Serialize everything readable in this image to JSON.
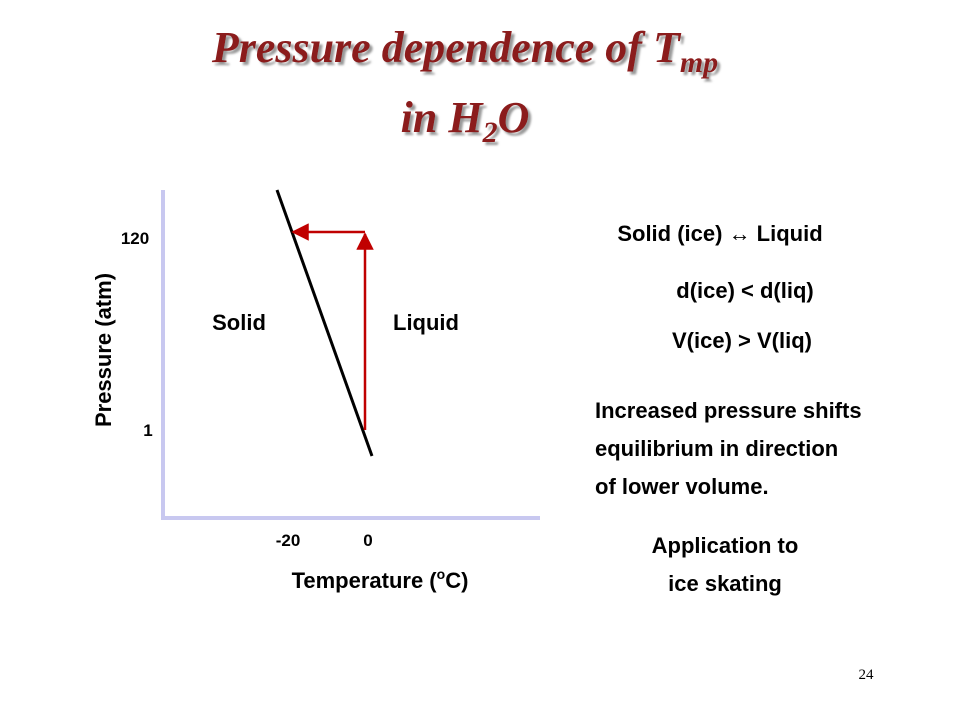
{
  "title": {
    "line1": "Pressure dependence of T",
    "line1_sub": "mp",
    "line2": "in H",
    "line2_sub": "2",
    "line2_end": "O"
  },
  "diagram": {
    "y_label": "Pressure (atm)",
    "x_label_start": "Temperature (",
    "x_label_sup": "o",
    "x_label_end": "C)",
    "y_ticks": [
      120,
      1
    ],
    "x_ticks": [
      -20,
      0
    ],
    "regions": [
      "Solid",
      "Liquid"
    ]
  },
  "notes": {
    "equilibrium": "Solid (ice) ↔ Liquid",
    "density": "d(ice) < d(liq)",
    "volume": "V(ice) > V(liq)",
    "explanation": [
      "Increased pressure shifts",
      "equilibrium in direction",
      "of lower volume."
    ],
    "application": [
      "Application to",
      "ice skating"
    ]
  },
  "page_number": "24"
}
